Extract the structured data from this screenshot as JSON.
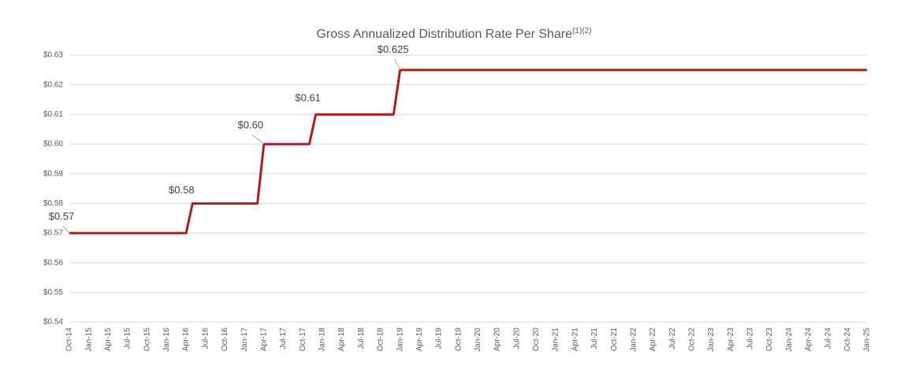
{
  "chart_data": {
    "type": "line",
    "title": "Gross Annualized Distribution Rate Per Share",
    "title_superscript": "(1)(2)",
    "categories": [
      "Oct-14",
      null,
      null,
      "Jan-15",
      null,
      null,
      "Apr-15",
      null,
      null,
      "Jul-15",
      null,
      null,
      "Oct-15",
      null,
      null,
      "Jan-16",
      null,
      null,
      "Apr-16",
      null,
      null,
      "Jul-16",
      null,
      null,
      "Oct-16",
      null,
      null,
      "Jan-17",
      null,
      null,
      "Apr-17",
      null,
      null,
      "Jul-17",
      null,
      null,
      "Oct-17",
      null,
      null,
      "Jan-18",
      null,
      null,
      "Apr-18",
      null,
      null,
      "Jul-18",
      null,
      null,
      "Oct-18",
      null,
      null,
      "Jan-19",
      null,
      null,
      "Apr-19",
      null,
      null,
      "Jul-19",
      null,
      null,
      "Oct-19",
      null,
      null,
      "Jan-20",
      null,
      null,
      "Apr-20",
      null,
      null,
      "Jul-20",
      null,
      null,
      "Oct-20",
      null,
      null,
      "Jan-21",
      null,
      null,
      "Apr-21",
      null,
      null,
      "Jul-21",
      null,
      null,
      "Oct-21",
      null,
      null,
      "Jan-22",
      null,
      null,
      "Apr-22",
      null,
      null,
      "Jul-22",
      null,
      null,
      "Oct-22",
      null,
      null,
      "Jan-23",
      null,
      null,
      "Apr-23",
      null,
      null,
      "Jul-23",
      null,
      null,
      "Oct-23",
      null,
      null,
      "Jan-24",
      null,
      null,
      "Apr-24",
      null,
      null,
      "Jul-24",
      null,
      null,
      "Oct-24",
      null,
      null,
      "Jan-25"
    ],
    "values": [
      0.57,
      0.57,
      0.57,
      0.57,
      0.57,
      0.57,
      0.57,
      0.57,
      0.57,
      0.57,
      0.57,
      0.57,
      0.57,
      0.57,
      0.57,
      0.57,
      0.57,
      0.57,
      0.57,
      0.58,
      0.58,
      0.58,
      0.58,
      0.58,
      0.58,
      0.58,
      0.58,
      0.58,
      0.58,
      0.58,
      0.6,
      0.6,
      0.6,
      0.6,
      0.6,
      0.6,
      0.6,
      0.6,
      0.61,
      0.61,
      0.61,
      0.61,
      0.61,
      0.61,
      0.61,
      0.61,
      0.61,
      0.61,
      0.61,
      0.61,
      0.61,
      0.625,
      0.625,
      0.625,
      0.625,
      0.625,
      0.625,
      0.625,
      0.625,
      0.625,
      0.625,
      0.625,
      0.625,
      0.625,
      0.625,
      0.625,
      0.625,
      0.625,
      0.625,
      0.625,
      0.625,
      0.625,
      0.625,
      0.625,
      0.625,
      0.625,
      0.625,
      0.625,
      0.625,
      0.625,
      0.625,
      0.625,
      0.625,
      0.625,
      0.625,
      0.625,
      0.625,
      0.625,
      0.625,
      0.625,
      0.625,
      0.625,
      0.625,
      0.625,
      0.625,
      0.625,
      0.625,
      0.625,
      0.625,
      0.625,
      0.625,
      0.625,
      0.625,
      0.625,
      0.625,
      0.625,
      0.625,
      0.625,
      0.625,
      0.625,
      0.625,
      0.625,
      0.625,
      0.625,
      0.625,
      0.625,
      0.625,
      0.625,
      0.625,
      0.625,
      0.625,
      0.625,
      0.625,
      0.625
    ],
    "value_labels": [
      "$0.57",
      null,
      null,
      null,
      null,
      null,
      null,
      null,
      null,
      null,
      null,
      null,
      null,
      null,
      null,
      null,
      null,
      null,
      null,
      "$0.58",
      null,
      null,
      null,
      null,
      null,
      null,
      null,
      null,
      null,
      null,
      "$0.60",
      null,
      null,
      null,
      null,
      null,
      null,
      null,
      "$0.61",
      null,
      null,
      null,
      null,
      null,
      null,
      null,
      null,
      null,
      null,
      null,
      null,
      "$0.625",
      null,
      null,
      null,
      null,
      null,
      null,
      null,
      null,
      null,
      null,
      null,
      null,
      null,
      null,
      null,
      null,
      null,
      null,
      null,
      null,
      null,
      null,
      null,
      null,
      null,
      null,
      null,
      null,
      null,
      null,
      null,
      null,
      null,
      null,
      null,
      null,
      null,
      null,
      null,
      null,
      null,
      null,
      null,
      null,
      null,
      null,
      null,
      null,
      null,
      null,
      null,
      null,
      null,
      null,
      null,
      null,
      null,
      null,
      null,
      null,
      null,
      null,
      null,
      null,
      null,
      null,
      null,
      null,
      null,
      null,
      null,
      null
    ],
    "color": "#b01c1c",
    "ylim": [
      0.54,
      0.63
    ],
    "yticks": [
      {
        "value": 0.54,
        "label": "$0.54"
      },
      {
        "value": 0.55,
        "label": "$0.55"
      },
      {
        "value": 0.56,
        "label": "$0.56"
      },
      {
        "value": 0.57,
        "label": "$0.57"
      },
      {
        "value": 0.58,
        "label": "$0.58"
      },
      {
        "value": 0.59,
        "label": "$0.59"
      },
      {
        "value": 0.6,
        "label": "$0.60"
      },
      {
        "value": 0.61,
        "label": "$0.61"
      },
      {
        "value": 0.62,
        "label": "$0.62"
      },
      {
        "value": 0.63,
        "label": "$0.63"
      }
    ],
    "grid": true
  }
}
